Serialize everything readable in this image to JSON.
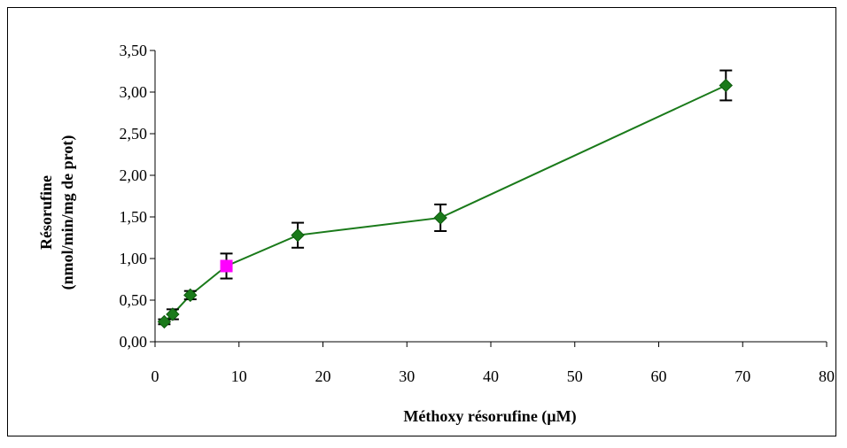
{
  "chart_data": {
    "type": "line",
    "title": "",
    "xlabel": "Méthoxy résorufine (µM)",
    "ylabel": [
      "Résorufine",
      "(nmol/min/mg de prot)"
    ],
    "xlim": [
      0,
      80
    ],
    "ylim": [
      0,
      3.5
    ],
    "x_ticks": [
      "0",
      "10",
      "20",
      "30",
      "40",
      "50",
      "60",
      "70",
      "80"
    ],
    "y_ticks": [
      "0,00",
      "0,50",
      "1,00",
      "1,50",
      "2,00",
      "2,50",
      "3,00",
      "3,50"
    ],
    "grid": false,
    "legend": "none",
    "line_color": "#1a7a1a",
    "marker_color": "#1a7a1a",
    "highlight_color": "#ff00ff",
    "series": [
      {
        "x": [
          1.1,
          2.1,
          4.2,
          8.5,
          17,
          34,
          68
        ],
        "y": [
          0.24,
          0.33,
          0.56,
          0.91,
          1.28,
          1.49,
          3.08
        ],
        "error": [
          0.03,
          0.06,
          0.05,
          0.15,
          0.15,
          0.16,
          0.18
        ],
        "highlight_index": 3
      }
    ]
  }
}
